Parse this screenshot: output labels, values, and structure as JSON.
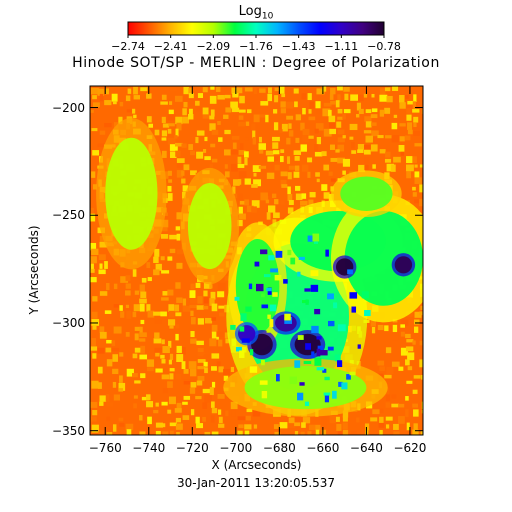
{
  "colorbar": {
    "label": "Log",
    "label_sub": "10",
    "ticks": [
      "−2.74",
      "−2.41",
      "−2.09",
      "−1.76",
      "−1.43",
      "−1.11",
      "−0.78"
    ],
    "colors": [
      "#ff0000",
      "#ff5a00",
      "#ffb400",
      "#ffff00",
      "#b4ff00",
      "#00ff40",
      "#00ffc0",
      "#00b4ff",
      "#0050ff",
      "#0000ff",
      "#3000c8",
      "#400080",
      "#200030"
    ]
  },
  "timestamp": "30-Jan-2011 13:20:05.537",
  "chart_data": {
    "type": "heatmap",
    "title": "Hinode SOT/SP - MERLIN : Degree of Polarization",
    "xlabel": "X (Arcseconds)",
    "ylabel": "Y (Arcseconds)",
    "xlim": [
      -767,
      -614
    ],
    "ylim": [
      -352,
      -190
    ],
    "xticks": [
      "−760",
      "−740",
      "−720",
      "−700",
      "−680",
      "−660",
      "−640",
      "−620"
    ],
    "xtick_values": [
      -760,
      -740,
      -720,
      -700,
      -680,
      -660,
      -640,
      -620
    ],
    "yticks": [
      "−200",
      "−250",
      "−300",
      "−350"
    ],
    "ytick_values": [
      -200,
      -250,
      -300,
      -350
    ],
    "value_range": [
      -2.74,
      -0.78
    ],
    "background_value": -2.55,
    "features": [
      {
        "name": "plage-core",
        "x": -672,
        "y": -297,
        "rx": 24,
        "ry": 34,
        "value": -1.85
      },
      {
        "name": "plage-east-ring",
        "x": -690,
        "y": -283,
        "rx": 10,
        "ry": 22,
        "value": -1.95
      },
      {
        "name": "plage-north",
        "x": -653,
        "y": -262,
        "rx": 22,
        "ry": 14,
        "value": -1.9
      },
      {
        "name": "plage-right",
        "x": -632,
        "y": -270,
        "rx": 18,
        "ry": 22,
        "value": -1.9
      },
      {
        "name": "plage-south",
        "x": -668,
        "y": -330,
        "rx": 28,
        "ry": 10,
        "value": -2.05
      },
      {
        "name": "network-upper-right",
        "x": -640,
        "y": -240,
        "rx": 12,
        "ry": 8,
        "value": -2.0
      },
      {
        "name": "network-left-arc",
        "x": -748,
        "y": -240,
        "rx": 12,
        "ry": 26,
        "value": -2.1
      },
      {
        "name": "network-center",
        "x": -712,
        "y": -255,
        "rx": 10,
        "ry": 20,
        "value": -2.1
      },
      {
        "name": "spot-1",
        "x": -688,
        "y": -310,
        "rx": 5,
        "ry": 5,
        "value": -0.8
      },
      {
        "name": "spot-2",
        "x": -667,
        "y": -310,
        "rx": 6,
        "ry": 5,
        "value": -0.8
      },
      {
        "name": "spot-3",
        "x": -650,
        "y": -274,
        "rx": 4,
        "ry": 4,
        "value": -0.8
      },
      {
        "name": "spot-4",
        "x": -623,
        "y": -273,
        "rx": 4,
        "ry": 4,
        "value": -0.85
      },
      {
        "name": "spot-5",
        "x": -677,
        "y": -300,
        "rx": 5,
        "ry": 4,
        "value": -1.0
      },
      {
        "name": "spot-6",
        "x": -695,
        "y": -305,
        "rx": 4,
        "ry": 4,
        "value": -1.1
      }
    ]
  }
}
